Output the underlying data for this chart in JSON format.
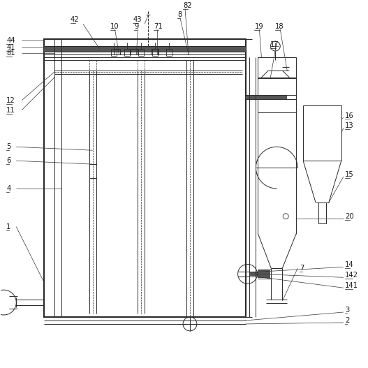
{
  "bg_color": "#ffffff",
  "line_color": "#2a2a2a",
  "lw": 0.7,
  "lw2": 1.2,
  "fig_size": [
    5.27,
    5.27
  ],
  "dpi": 100
}
